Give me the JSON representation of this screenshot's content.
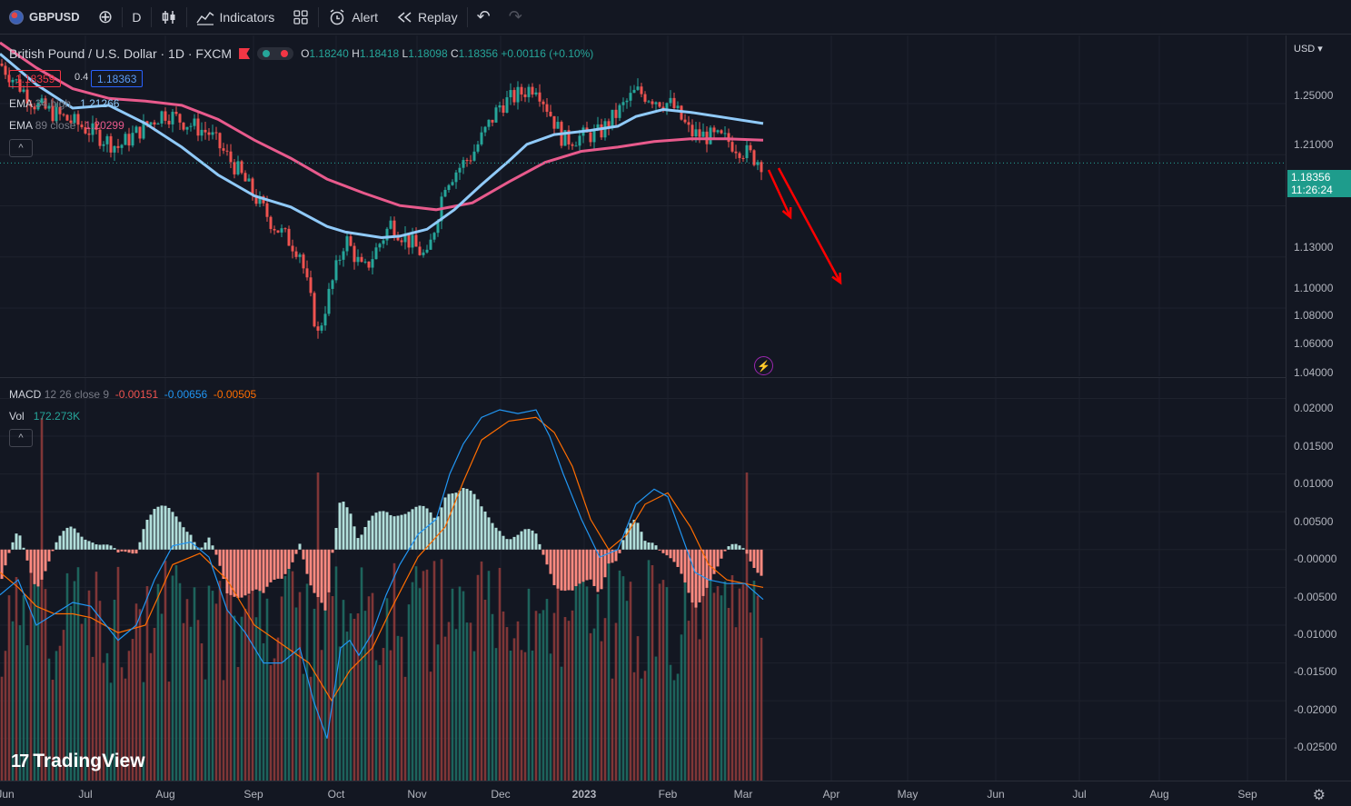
{
  "toolbar": {
    "symbol": "GBPUSD",
    "add_symbol": "⊕",
    "interval": "D",
    "indicators_label": "Indicators",
    "alert_label": "Alert",
    "replay_label": "Replay",
    "undo": "↶",
    "redo": "↷"
  },
  "legend": {
    "title": "British Pound / U.S. Dollar · 1D · FXCM",
    "open_k": "O",
    "open": "1.18240",
    "high_k": "H",
    "high": "1.18418",
    "low_k": "L",
    "low": "1.18098",
    "close_k": "C",
    "close": "1.18356",
    "change": "+0.00116 (+0.10%)",
    "sell_price": "1.18359",
    "spread": "0.4",
    "buy_price": "1.18363"
  },
  "indicators": {
    "ema1_name": "EMA",
    "ema1_params": "34 high",
    "ema1_value": "1.21266",
    "ema2_name": "EMA",
    "ema2_params": "89 close",
    "ema2_value": "1.20299",
    "macd_name": "MACD",
    "macd_params": "12 26 close 9",
    "macd_hist": "-0.00151",
    "macd_line": "-0.00656",
    "macd_signal": "-0.00505",
    "vol_name": "Vol",
    "vol_value": "172.273K",
    "collapse": "^"
  },
  "price_axis": {
    "currency": "USD ▾",
    "ticks": [
      "1.25000",
      "1.21000",
      "1.13000",
      "1.10000",
      "1.08000",
      "1.06000",
      "1.04000"
    ],
    "last_price": "1.18356",
    "countdown": "11:26:24"
  },
  "macd_axis": {
    "ticks": [
      "0.02000",
      "0.01500",
      "0.01000",
      "0.00500",
      "-0.00000",
      "-0.00500",
      "-0.01000",
      "-0.01500",
      "-0.02000",
      "-0.02500"
    ]
  },
  "time_axis": {
    "labels": [
      "Jun",
      "Jul",
      "Aug",
      "Sep",
      "Oct",
      "Nov",
      "Dec",
      "2023",
      "Feb",
      "Mar",
      "Apr",
      "May",
      "Jun",
      "Jul",
      "Aug",
      "Sep"
    ]
  },
  "branding": {
    "logo_text": "TradingView",
    "logo_mark": "17"
  },
  "colors": {
    "up": "#26a69a",
    "down": "#ef5350",
    "ema34": "#90caf9",
    "ema89": "#e85a8c",
    "macd": "#2196f3",
    "signal": "#ff6d00",
    "arrow": "#ff0000"
  },
  "chart_data": {
    "type": "candlestick",
    "title": "British Pound / U.S. Dollar · 1D · FXCM",
    "price_range": [
      1.035,
      1.27
    ],
    "macd_range": [
      -0.029,
      0.0215
    ],
    "ema34_high": [
      [
        0,
        1.262
      ],
      [
        40,
        1.24
      ],
      [
        80,
        1.223
      ],
      [
        120,
        1.225
      ],
      [
        160,
        1.212
      ],
      [
        200,
        1.195
      ],
      [
        240,
        1.175
      ],
      [
        280,
        1.16
      ],
      [
        320,
        1.152
      ],
      [
        360,
        1.138
      ],
      [
        380,
        1.134
      ],
      [
        420,
        1.13
      ],
      [
        440,
        1.131
      ],
      [
        470,
        1.136
      ],
      [
        500,
        1.15
      ],
      [
        530,
        1.168
      ],
      [
        560,
        1.185
      ],
      [
        580,
        1.197
      ],
      [
        610,
        1.204
      ],
      [
        650,
        1.207
      ],
      [
        680,
        1.21
      ],
      [
        700,
        1.217
      ],
      [
        730,
        1.222
      ],
      [
        760,
        1.22
      ],
      [
        800,
        1.216
      ],
      [
        840,
        1.212
      ]
    ],
    "ema89_close": [
      [
        0,
        1.27
      ],
      [
        40,
        1.252
      ],
      [
        80,
        1.237
      ],
      [
        120,
        1.23
      ],
      [
        160,
        1.228
      ],
      [
        200,
        1.225
      ],
      [
        240,
        1.215
      ],
      [
        280,
        1.2
      ],
      [
        320,
        1.187
      ],
      [
        360,
        1.172
      ],
      [
        400,
        1.162
      ],
      [
        440,
        1.153
      ],
      [
        480,
        1.15
      ],
      [
        520,
        1.155
      ],
      [
        560,
        1.17
      ],
      [
        600,
        1.184
      ],
      [
        640,
        1.192
      ],
      [
        680,
        1.195
      ],
      [
        720,
        1.199
      ],
      [
        760,
        1.201
      ],
      [
        800,
        1.201
      ],
      [
        840,
        1.2
      ]
    ],
    "macd_line": [
      [
        0,
        -0.006
      ],
      [
        20,
        -0.004
      ],
      [
        40,
        -0.01
      ],
      [
        60,
        -0.0085
      ],
      [
        80,
        -0.007
      ],
      [
        100,
        -0.0075
      ],
      [
        130,
        -0.012
      ],
      [
        150,
        -0.01
      ],
      [
        170,
        -0.004
      ],
      [
        190,
        0.0005
      ],
      [
        210,
        0.001
      ],
      [
        230,
        -0.001
      ],
      [
        250,
        -0.008
      ],
      [
        270,
        -0.011
      ],
      [
        290,
        -0.015
      ],
      [
        310,
        -0.015
      ],
      [
        330,
        -0.013
      ],
      [
        345,
        -0.02
      ],
      [
        360,
        -0.025
      ],
      [
        375,
        -0.013
      ],
      [
        385,
        -0.012
      ],
      [
        395,
        -0.014
      ],
      [
        410,
        -0.011
      ],
      [
        425,
        -0.006
      ],
      [
        440,
        -0.002
      ],
      [
        460,
        0.002
      ],
      [
        480,
        0.004
      ],
      [
        495,
        0.01
      ],
      [
        510,
        0.014
      ],
      [
        530,
        0.0175
      ],
      [
        550,
        0.0185
      ],
      [
        570,
        0.018
      ],
      [
        590,
        0.0185
      ],
      [
        605,
        0.015
      ],
      [
        620,
        0.01
      ],
      [
        640,
        0.004
      ],
      [
        660,
        -0.001
      ],
      [
        680,
        0.0
      ],
      [
        700,
        0.006
      ],
      [
        720,
        0.008
      ],
      [
        735,
        0.007
      ],
      [
        750,
        0.002
      ],
      [
        765,
        -0.003
      ],
      [
        780,
        -0.004
      ],
      [
        800,
        -0.0045
      ],
      [
        820,
        -0.0045
      ],
      [
        840,
        -0.0066
      ]
    ],
    "signal_line": [
      [
        0,
        -0.003
      ],
      [
        20,
        -0.005
      ],
      [
        40,
        -0.0075
      ],
      [
        60,
        -0.0085
      ],
      [
        80,
        -0.0085
      ],
      [
        100,
        -0.009
      ],
      [
        130,
        -0.011
      ],
      [
        160,
        -0.01
      ],
      [
        190,
        -0.002
      ],
      [
        220,
        -0.0005
      ],
      [
        250,
        -0.004
      ],
      [
        280,
        -0.01
      ],
      [
        310,
        -0.0125
      ],
      [
        340,
        -0.015
      ],
      [
        365,
        -0.02
      ],
      [
        385,
        -0.016
      ],
      [
        410,
        -0.013
      ],
      [
        430,
        -0.008
      ],
      [
        460,
        -0.001
      ],
      [
        490,
        0.003
      ],
      [
        510,
        0.009
      ],
      [
        530,
        0.0145
      ],
      [
        560,
        0.017
      ],
      [
        590,
        0.0175
      ],
      [
        610,
        0.0155
      ],
      [
        630,
        0.011
      ],
      [
        650,
        0.004
      ],
      [
        670,
        0.0
      ],
      [
        690,
        0.002
      ],
      [
        710,
        0.006
      ],
      [
        735,
        0.0075
      ],
      [
        760,
        0.003
      ],
      [
        780,
        -0.002
      ],
      [
        800,
        -0.004
      ],
      [
        840,
        -0.005
      ]
    ]
  }
}
